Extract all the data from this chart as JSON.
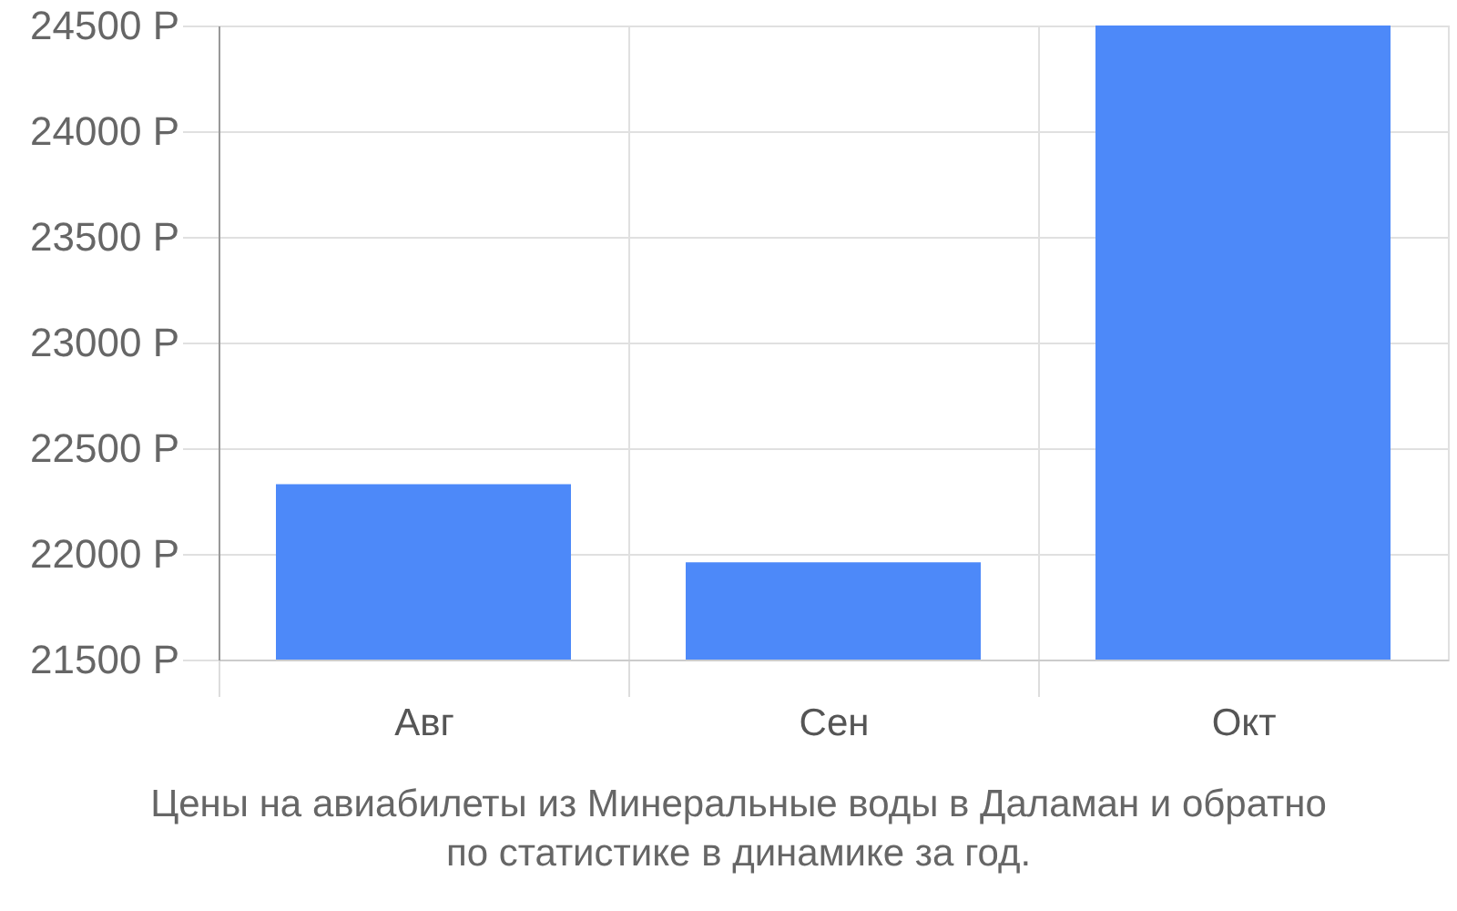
{
  "chart_data": {
    "type": "bar",
    "title": "Цены на авиабилеты из Минеральные воды в Даламан и обратно по статистике в динамике за год.",
    "categories": [
      "Авг",
      "Сен",
      "Окт"
    ],
    "values": [
      22330,
      21960,
      24500
    ],
    "color": "#4d89f9",
    "ylim": [
      21500,
      24500
    ],
    "yticks": [
      {
        "value": 21500,
        "label": "21500 Р"
      },
      {
        "value": 22000,
        "label": "22000 Р"
      },
      {
        "value": 22500,
        "label": "22500 Р"
      },
      {
        "value": 23000,
        "label": "23000 Р"
      },
      {
        "value": 23500,
        "label": "23500 Р"
      },
      {
        "value": 24000,
        "label": "24000 Р"
      },
      {
        "value": 24500,
        "label": "24500 Р"
      }
    ],
    "grid": true
  }
}
